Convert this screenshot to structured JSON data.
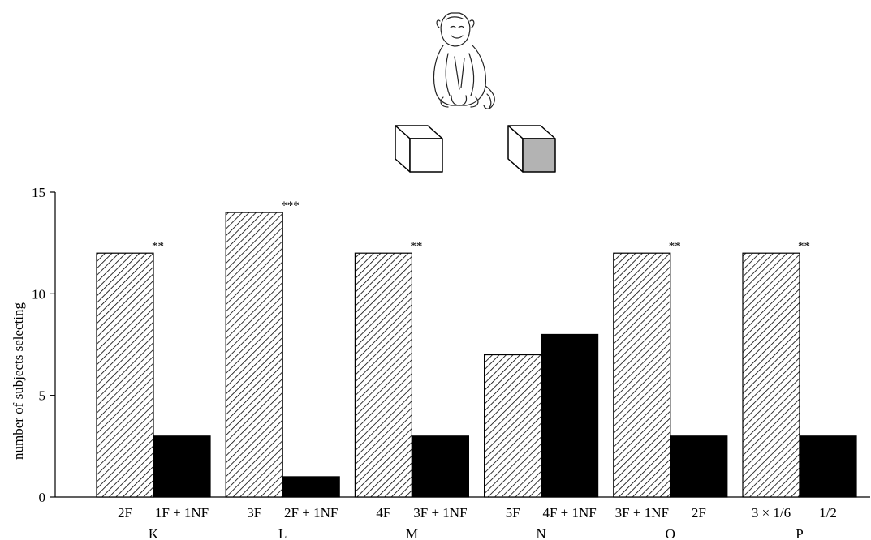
{
  "chart_data": {
    "type": "bar",
    "ylabel": "number of subjects selecting",
    "ylim": [
      0,
      15
    ],
    "yticks": [
      0,
      5,
      10,
      15
    ],
    "groups": [
      {
        "label": "K",
        "bars": [
          {
            "label": "2F",
            "value": 12,
            "style": "hatched"
          },
          {
            "label": "1F + 1NF",
            "value": 3,
            "style": "solid"
          }
        ],
        "significance": "**"
      },
      {
        "label": "L",
        "bars": [
          {
            "label": "3F",
            "value": 14,
            "style": "hatched"
          },
          {
            "label": "2F + 1NF",
            "value": 1,
            "style": "solid"
          }
        ],
        "significance": "***"
      },
      {
        "label": "M",
        "bars": [
          {
            "label": "4F",
            "value": 12,
            "style": "hatched"
          },
          {
            "label": "3F + 1NF",
            "value": 3,
            "style": "solid"
          }
        ],
        "significance": "**"
      },
      {
        "label": "N",
        "bars": [
          {
            "label": "5F",
            "value": 7,
            "style": "hatched"
          },
          {
            "label": "4F + 1NF",
            "value": 8,
            "style": "solid"
          }
        ],
        "significance": ""
      },
      {
        "label": "O",
        "bars": [
          {
            "label": "3F + 1NF",
            "value": 12,
            "style": "hatched"
          },
          {
            "label": "2F",
            "value": 3,
            "style": "solid"
          }
        ],
        "significance": "**"
      },
      {
        "label": "P",
        "bars": [
          {
            "label": "3 × 1/6",
            "value": 12,
            "style": "hatched"
          },
          {
            "label": "1/2",
            "value": 3,
            "style": "solid"
          }
        ],
        "significance": "**"
      }
    ],
    "colors": {
      "solid": "#000000",
      "hatch": "#000000",
      "hatch_bg": "#ffffff",
      "box_shaded": "#b3b3b3"
    },
    "grid": false,
    "legend": "none"
  },
  "illustration": {
    "monkey": "monkey-drawing",
    "boxes": [
      "white-box",
      "gray-box"
    ]
  }
}
